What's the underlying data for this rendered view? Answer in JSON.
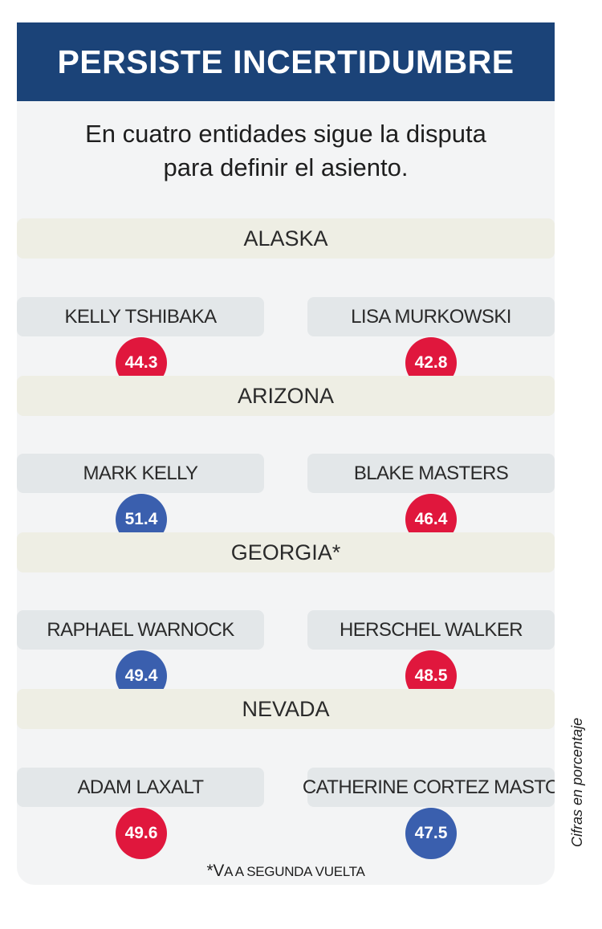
{
  "title": "PERSISTE INCERTIDUMBRE",
  "subtitle": {
    "line1": "En cuatro entidades sigue la disputa",
    "line2": "para definir el asiento."
  },
  "colors": {
    "header": "#1b4378",
    "red_party": "#e0173d",
    "blue_party": "#3a5fae"
  },
  "states": [
    {
      "name": "ALASKA",
      "left": {
        "candidate": "KELLY TSHIBAKA",
        "value": "44.3",
        "color": "red"
      },
      "right": {
        "candidate": "LISA MURKOWSKI",
        "value": "42.8",
        "color": "red"
      }
    },
    {
      "name": "ARIZONA",
      "left": {
        "candidate": "MARK KELLY",
        "value": "51.4",
        "color": "blue"
      },
      "right": {
        "candidate": "BLAKE MASTERS",
        "value": "46.4",
        "color": "red"
      }
    },
    {
      "name": "GEORGIA*",
      "left": {
        "candidate": "RAPHAEL WARNOCK",
        "value": "49.4",
        "color": "blue"
      },
      "right": {
        "candidate": "HERSCHEL WALKER",
        "value": "48.5",
        "color": "red"
      }
    },
    {
      "name": "NEVADA",
      "left": {
        "candidate": "ADAM LAXALT",
        "value": "49.6",
        "color": "red"
      },
      "right": {
        "candidate": "CATHERINE CORTEZ MASTO",
        "value": "47.5",
        "color": "blue"
      }
    }
  ],
  "footnote": {
    "prefix": "*V",
    "rest": "a a segunda vuelta"
  },
  "side_note": "Cifras en porcentaje"
}
